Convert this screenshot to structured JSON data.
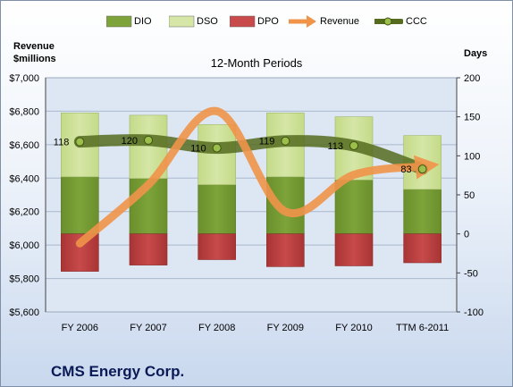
{
  "company": "CMS Energy Corp.",
  "chart_data": {
    "type": "bar",
    "title": "12-Month Periods",
    "left_axis_title": [
      "Revenue",
      "$millions"
    ],
    "right_axis_title": "Days",
    "categories": [
      "FY 2006",
      "FY 2007",
      "FY 2008",
      "FY 2009",
      "FY 2010",
      "TTM 6-2011"
    ],
    "left_axis": {
      "min": 5600,
      "max": 7000,
      "step": 200,
      "tick_labels": [
        "$5,600",
        "$5,800",
        "$6,000",
        "$6,200",
        "$6,400",
        "$6,600",
        "$6,800",
        "$7,000"
      ]
    },
    "right_axis": {
      "min": -100,
      "max": 200,
      "step": 50,
      "tick_labels": [
        "-100",
        "-50",
        "0",
        "50",
        "100",
        "150",
        "200"
      ]
    },
    "legend": [
      "DIO",
      "DSO",
      "DPO",
      "Revenue",
      "CCC"
    ],
    "series": [
      {
        "name": "DIO",
        "axis": "right",
        "values": [
          73,
          71,
          63,
          73,
          69,
          57
        ]
      },
      {
        "name": "DSO",
        "axis": "right",
        "values": [
          82,
          81,
          77,
          82,
          81,
          69
        ]
      },
      {
        "name": "DPO",
        "axis": "right",
        "values": [
          -48,
          -40,
          -33,
          -42,
          -41,
          -37
        ]
      },
      {
        "name": "Revenue",
        "axis": "left",
        "values": [
          6010,
          6360,
          6800,
          6200,
          6420,
          6470
        ]
      },
      {
        "name": "CCC",
        "axis": "right",
        "values": [
          118,
          120,
          110,
          119,
          113,
          83
        ]
      }
    ],
    "ccc_labels": [
      "118",
      "120",
      "110",
      "119",
      "113",
      "83"
    ],
    "colors": {
      "DIO": "#7da33a",
      "DSO": "#d5e6a6",
      "DPO": "#c84a4a",
      "Revenue": "#f0944a",
      "CCC": "#556b1e"
    }
  }
}
